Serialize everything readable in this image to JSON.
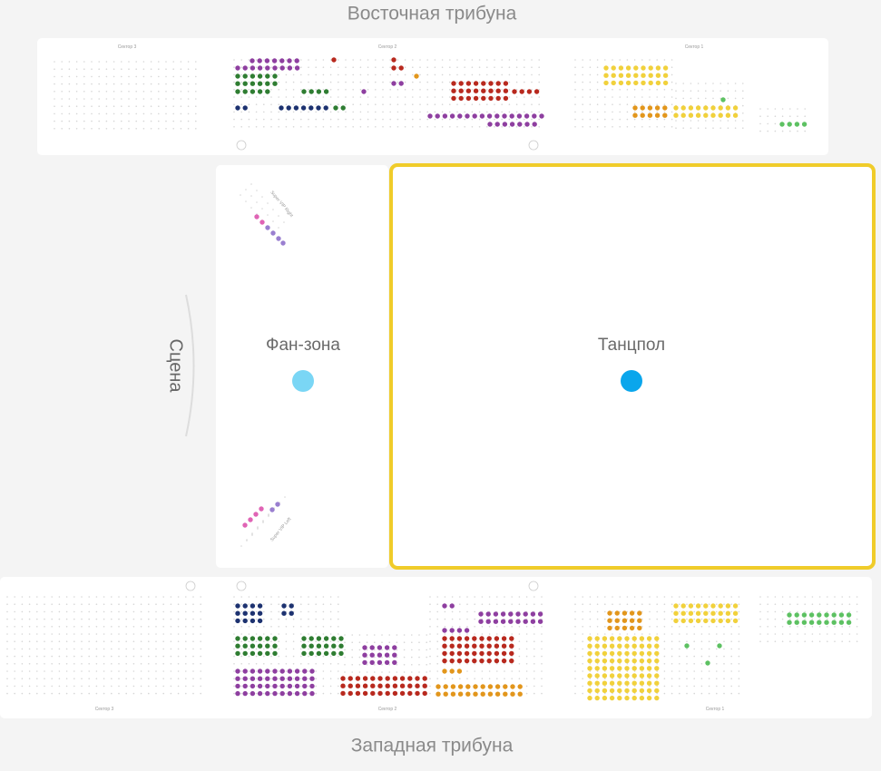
{
  "header": {
    "east": "Восточная трибуна",
    "west": "Западная трибуна"
  },
  "stage": "Сцена",
  "zones": [
    {
      "label": "Фан-зона"
    },
    {
      "label": "Танцпол"
    }
  ],
  "sectors_east": [
    "Сектор 3",
    "Сектор 2",
    "Сектор 1"
  ],
  "sectors_west": [
    "Сектор 3",
    "Сектор 2",
    "Сектор 1"
  ],
  "vip": [
    "Super VIP Right",
    "Super VIP Left"
  ]
}
